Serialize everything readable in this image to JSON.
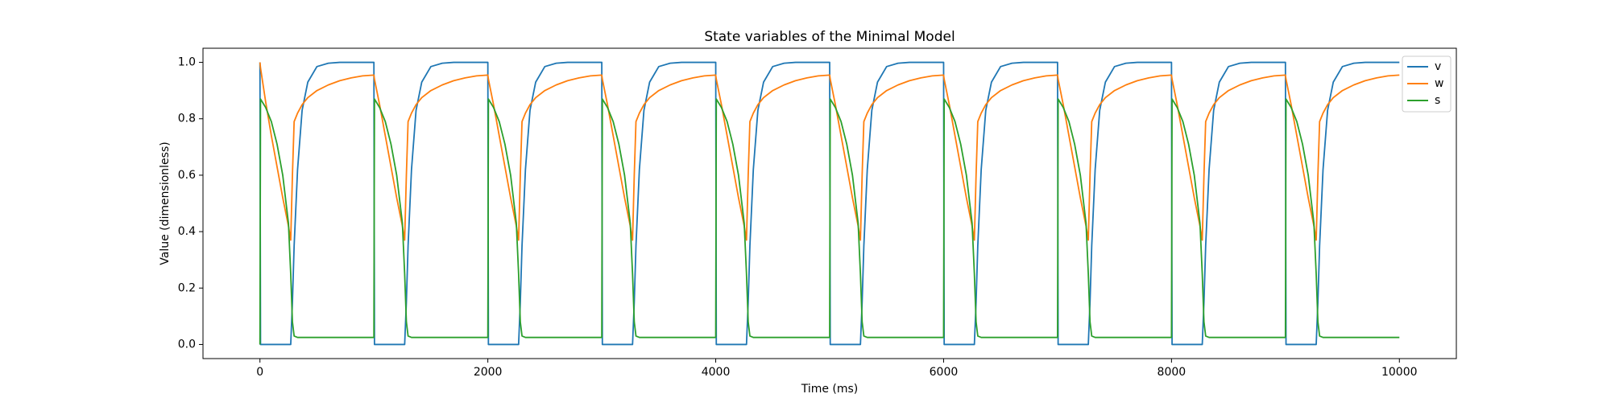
{
  "chart_data": {
    "type": "line",
    "title": "State variables of the Minimal Model",
    "x_label": "Time (ms)",
    "y_label": "Value (dimensionless)",
    "xlim": [
      -500,
      10500
    ],
    "ylim": [
      -0.05,
      1.05
    ],
    "xticks": [
      0,
      2000,
      4000,
      6000,
      8000,
      10000
    ],
    "yticks": [
      {
        "value": 0,
        "label": "0.0"
      },
      {
        "value": 0.2,
        "label": "0.2"
      },
      {
        "value": 0.4,
        "label": "0.4"
      },
      {
        "value": 0.6,
        "label": "0.6"
      },
      {
        "value": 0.8,
        "label": "0.8"
      },
      {
        "value": 1,
        "label": "1.0"
      }
    ],
    "legend": "upper right",
    "x": [
      0,
      5,
      50,
      100,
      150,
      200,
      250,
      270,
      285,
      300,
      330,
      370,
      420,
      500,
      600,
      700,
      800,
      900,
      1000,
      1005,
      1050,
      1100,
      1150,
      1200,
      1250,
      1270,
      1285,
      1300,
      1330,
      1370,
      1420,
      1500,
      1600,
      1700,
      1800,
      1900,
      2000,
      2005,
      2050,
      2100,
      2150,
      2200,
      2250,
      2270,
      2285,
      2300,
      2330,
      2370,
      2420,
      2500,
      2600,
      2700,
      2800,
      2900,
      3000,
      3005,
      3050,
      3100,
      3150,
      3200,
      3250,
      3270,
      3285,
      3300,
      3330,
      3370,
      3420,
      3500,
      3600,
      3700,
      3800,
      3900,
      4000,
      4005,
      4050,
      4100,
      4150,
      4200,
      4250,
      4270,
      4285,
      4300,
      4330,
      4370,
      4420,
      4500,
      4600,
      4700,
      4800,
      4900,
      5000,
      5005,
      5050,
      5100,
      5150,
      5200,
      5250,
      5270,
      5285,
      5300,
      5330,
      5370,
      5420,
      5500,
      5600,
      5700,
      5800,
      5900,
      6000,
      6005,
      6050,
      6100,
      6150,
      6200,
      6250,
      6270,
      6285,
      6300,
      6330,
      6370,
      6420,
      6500,
      6600,
      6700,
      6800,
      6900,
      7000,
      7005,
      7050,
      7100,
      7150,
      7200,
      7250,
      7270,
      7285,
      7300,
      7330,
      7370,
      7420,
      7500,
      7600,
      7700,
      7800,
      7900,
      8000,
      8005,
      8050,
      8100,
      8150,
      8200,
      8250,
      8270,
      8285,
      8300,
      8330,
      8370,
      8420,
      8500,
      8600,
      8700,
      8800,
      8900,
      9000,
      9005,
      9050,
      9100,
      9150,
      9200,
      9250,
      9270,
      9285,
      9300,
      9330,
      9370,
      9420,
      9500,
      9600,
      9700,
      9800,
      9900,
      10000
    ],
    "series": [
      {
        "name": "v",
        "color": "#1f77b4",
        "values": [
          1,
          0,
          0,
          0,
          0,
          0,
          0,
          0,
          0.15,
          0.35,
          0.62,
          0.83,
          0.93,
          0.985,
          0.997,
          1,
          1,
          1,
          1,
          0,
          0,
          0,
          0,
          0,
          0,
          0,
          0.15,
          0.35,
          0.62,
          0.83,
          0.93,
          0.985,
          0.997,
          1,
          1,
          1,
          1,
          0,
          0,
          0,
          0,
          0,
          0,
          0,
          0.15,
          0.35,
          0.62,
          0.83,
          0.93,
          0.985,
          0.997,
          1,
          1,
          1,
          1,
          0,
          0,
          0,
          0,
          0,
          0,
          0,
          0.15,
          0.35,
          0.62,
          0.83,
          0.93,
          0.985,
          0.997,
          1,
          1,
          1,
          1,
          0,
          0,
          0,
          0,
          0,
          0,
          0,
          0.15,
          0.35,
          0.62,
          0.83,
          0.93,
          0.985,
          0.997,
          1,
          1,
          1,
          1,
          0,
          0,
          0,
          0,
          0,
          0,
          0,
          0.15,
          0.35,
          0.62,
          0.83,
          0.93,
          0.985,
          0.997,
          1,
          1,
          1,
          1,
          0,
          0,
          0,
          0,
          0,
          0,
          0,
          0.15,
          0.35,
          0.62,
          0.83,
          0.93,
          0.985,
          0.997,
          1,
          1,
          1,
          1,
          0,
          0,
          0,
          0,
          0,
          0,
          0,
          0.15,
          0.35,
          0.62,
          0.83,
          0.93,
          0.985,
          0.997,
          1,
          1,
          1,
          1,
          0,
          0,
          0,
          0,
          0,
          0,
          0,
          0.15,
          0.35,
          0.62,
          0.83,
          0.93,
          0.985,
          0.997,
          1,
          1,
          1,
          1,
          0,
          0,
          0,
          0,
          0,
          0,
          0,
          0.15,
          0.35,
          0.62,
          0.83,
          0.93,
          0.985,
          0.997,
          1,
          1,
          1,
          1
        ]
      },
      {
        "name": "w",
        "color": "#ff7f0e",
        "values": [
          1,
          0.98,
          0.86,
          0.74,
          0.63,
          0.52,
          0.42,
          0.37,
          0.6,
          0.79,
          0.82,
          0.85,
          0.875,
          0.9,
          0.92,
          0.935,
          0.945,
          0.952,
          0.955,
          0.94,
          0.85,
          0.74,
          0.63,
          0.52,
          0.42,
          0.37,
          0.6,
          0.79,
          0.82,
          0.85,
          0.875,
          0.9,
          0.92,
          0.935,
          0.945,
          0.952,
          0.955,
          0.94,
          0.85,
          0.74,
          0.63,
          0.52,
          0.42,
          0.37,
          0.6,
          0.79,
          0.82,
          0.85,
          0.875,
          0.9,
          0.92,
          0.935,
          0.945,
          0.952,
          0.955,
          0.94,
          0.85,
          0.74,
          0.63,
          0.52,
          0.42,
          0.37,
          0.6,
          0.79,
          0.82,
          0.85,
          0.875,
          0.9,
          0.92,
          0.935,
          0.945,
          0.952,
          0.955,
          0.94,
          0.85,
          0.74,
          0.63,
          0.52,
          0.42,
          0.37,
          0.6,
          0.79,
          0.82,
          0.85,
          0.875,
          0.9,
          0.92,
          0.935,
          0.945,
          0.952,
          0.955,
          0.94,
          0.85,
          0.74,
          0.63,
          0.52,
          0.42,
          0.37,
          0.6,
          0.79,
          0.82,
          0.85,
          0.875,
          0.9,
          0.92,
          0.935,
          0.945,
          0.952,
          0.955,
          0.94,
          0.85,
          0.74,
          0.63,
          0.52,
          0.42,
          0.37,
          0.6,
          0.79,
          0.82,
          0.85,
          0.875,
          0.9,
          0.92,
          0.935,
          0.945,
          0.952,
          0.955,
          0.94,
          0.85,
          0.74,
          0.63,
          0.52,
          0.42,
          0.37,
          0.6,
          0.79,
          0.82,
          0.85,
          0.875,
          0.9,
          0.92,
          0.935,
          0.945,
          0.952,
          0.955,
          0.94,
          0.85,
          0.74,
          0.63,
          0.52,
          0.42,
          0.37,
          0.6,
          0.79,
          0.82,
          0.85,
          0.875,
          0.9,
          0.92,
          0.935,
          0.945,
          0.952,
          0.955,
          0.94,
          0.85,
          0.74,
          0.63,
          0.52,
          0.42,
          0.37,
          0.6,
          0.79,
          0.82,
          0.85,
          0.875,
          0.9,
          0.92,
          0.935,
          0.945,
          0.952,
          0.955
        ]
      },
      {
        "name": "s",
        "color": "#2ca02c",
        "values": [
          0,
          0.87,
          0.84,
          0.79,
          0.71,
          0.6,
          0.43,
          0.25,
          0.08,
          0.03,
          0.025,
          0.025,
          0.025,
          0.025,
          0.025,
          0.025,
          0.025,
          0.025,
          0.025,
          0.87,
          0.84,
          0.79,
          0.71,
          0.6,
          0.43,
          0.25,
          0.08,
          0.03,
          0.025,
          0.025,
          0.025,
          0.025,
          0.025,
          0.025,
          0.025,
          0.025,
          0.025,
          0.87,
          0.84,
          0.79,
          0.71,
          0.6,
          0.43,
          0.25,
          0.08,
          0.03,
          0.025,
          0.025,
          0.025,
          0.025,
          0.025,
          0.025,
          0.025,
          0.025,
          0.025,
          0.87,
          0.84,
          0.79,
          0.71,
          0.6,
          0.43,
          0.25,
          0.08,
          0.03,
          0.025,
          0.025,
          0.025,
          0.025,
          0.025,
          0.025,
          0.025,
          0.025,
          0.025,
          0.87,
          0.84,
          0.79,
          0.71,
          0.6,
          0.43,
          0.25,
          0.08,
          0.03,
          0.025,
          0.025,
          0.025,
          0.025,
          0.025,
          0.025,
          0.025,
          0.025,
          0.025,
          0.87,
          0.84,
          0.79,
          0.71,
          0.6,
          0.43,
          0.25,
          0.08,
          0.03,
          0.025,
          0.025,
          0.025,
          0.025,
          0.025,
          0.025,
          0.025,
          0.025,
          0.025,
          0.87,
          0.84,
          0.79,
          0.71,
          0.6,
          0.43,
          0.25,
          0.08,
          0.03,
          0.025,
          0.025,
          0.025,
          0.025,
          0.025,
          0.025,
          0.025,
          0.025,
          0.025,
          0.87,
          0.84,
          0.79,
          0.71,
          0.6,
          0.43,
          0.25,
          0.08,
          0.03,
          0.025,
          0.025,
          0.025,
          0.025,
          0.025,
          0.025,
          0.025,
          0.025,
          0.025,
          0.87,
          0.84,
          0.79,
          0.71,
          0.6,
          0.43,
          0.25,
          0.08,
          0.03,
          0.025,
          0.025,
          0.025,
          0.025,
          0.025,
          0.025,
          0.025,
          0.025,
          0.025,
          0.87,
          0.84,
          0.79,
          0.71,
          0.6,
          0.43,
          0.25,
          0.08,
          0.03,
          0.025,
          0.025,
          0.025,
          0.025,
          0.025,
          0.025,
          0.025,
          0.025,
          0.025
        ]
      }
    ]
  }
}
